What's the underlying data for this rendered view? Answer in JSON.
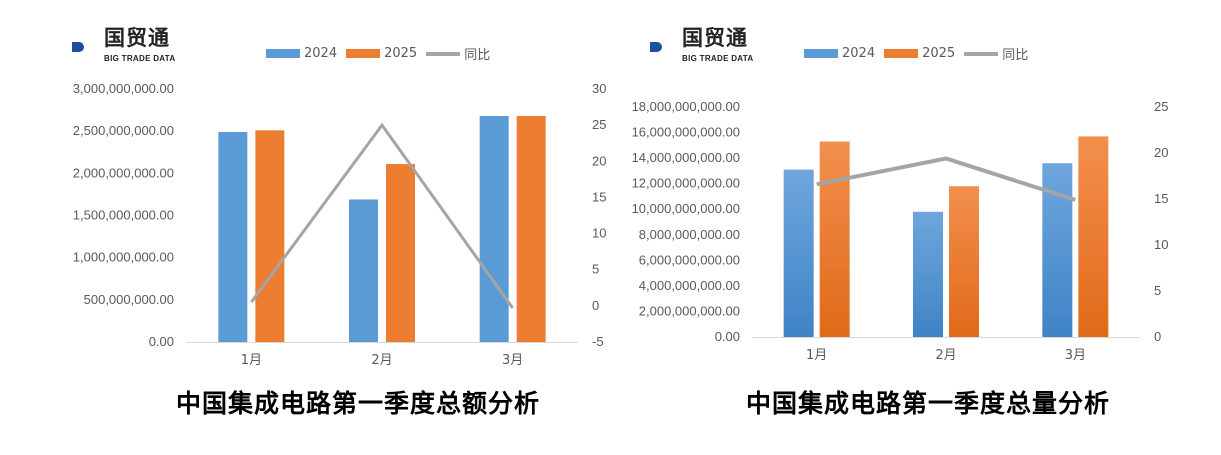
{
  "logo": {
    "cn": "国贸通",
    "en": "BIG TRADE DATA"
  },
  "colors": {
    "series_2024": "#5b9bd5",
    "series_2025": "#ed7d31",
    "yoy_line": "#a5a5a5"
  },
  "legend": [
    {
      "label": "2024",
      "kind": "bar",
      "color": "#5b9bd5"
    },
    {
      "label": "2025",
      "kind": "bar",
      "color": "#ed7d31"
    },
    {
      "label": "同比",
      "kind": "line",
      "color": "#a5a5a5"
    }
  ],
  "chart_data": [
    {
      "type": "bar",
      "title": "中国集成电路第一季度总额分析",
      "categories": [
        "1月",
        "2月",
        "3月"
      ],
      "series": [
        {
          "name": "2024",
          "values": [
            2490000000,
            1690000000,
            2680000000
          ]
        },
        {
          "name": "2025",
          "values": [
            2510000000,
            2110000000,
            2680000000
          ]
        },
        {
          "name": "同比",
          "type": "line",
          "axis": "secondary",
          "values": [
            0.5,
            25,
            -0.3
          ]
        }
      ],
      "ylim": [
        0,
        3000000000
      ],
      "yticks": [
        "0.00",
        "500,000,000.00",
        "1,000,000,000.00",
        "1,500,000,000.00",
        "2,000,000,000.00",
        "2,500,000,000.00",
        "3,000,000,000.00"
      ],
      "y2lim": [
        -5,
        30
      ],
      "y2ticks": [
        "-5",
        "0",
        "5",
        "10",
        "15",
        "20",
        "25",
        "30"
      ],
      "grid": false,
      "legend_position": "top"
    },
    {
      "type": "bar",
      "title": "中国集成电路第一季度总量分析",
      "categories": [
        "1月",
        "2月",
        "3月"
      ],
      "series": [
        {
          "name": "2024",
          "values": [
            13100000000,
            9800000000,
            13600000000
          ]
        },
        {
          "name": "2025",
          "values": [
            15300000000,
            11800000000,
            15700000000
          ]
        },
        {
          "name": "同比",
          "type": "line",
          "axis": "secondary",
          "values": [
            16.6,
            19.4,
            14.9
          ]
        }
      ],
      "ylim": [
        0,
        18000000000
      ],
      "yticks": [
        "0.00",
        "2,000,000,000.00",
        "4,000,000,000.00",
        "6,000,000,000.00",
        "8,000,000,000.00",
        "10,000,000,000.00",
        "12,000,000,000.00",
        "14,000,000,000.00",
        "16,000,000,000.00",
        "18,000,000,000.00"
      ],
      "y2lim": [
        0,
        25
      ],
      "y2ticks": [
        "0",
        "5",
        "10",
        "15",
        "20",
        "25"
      ],
      "grid": false,
      "legend_position": "top"
    }
  ]
}
